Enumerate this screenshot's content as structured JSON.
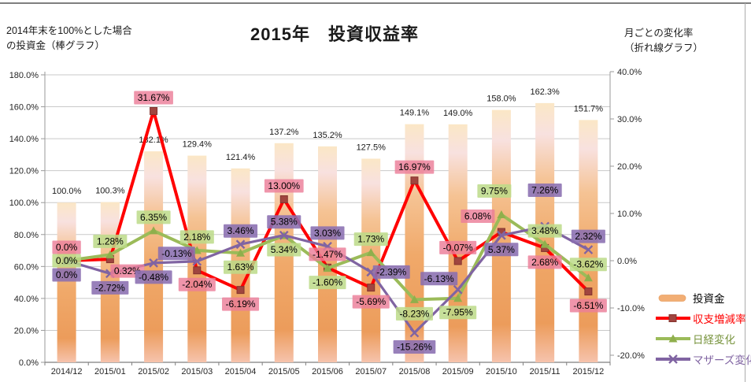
{
  "header": {
    "left_note": "2014年末を100%とした場合\nの投資金（棒グラフ）",
    "title": "2015年　投資収益率",
    "right_note": "月ごとの変化率\n（折れ線グラフ）"
  },
  "chart_data": {
    "type": "combo-bar-line",
    "categories": [
      "2014/12",
      "2015/01",
      "2015/02",
      "2015/03",
      "2015/04",
      "2015/05",
      "2015/06",
      "2015/07",
      "2015/08",
      "2015/09",
      "2015/10",
      "2015/11",
      "2015/12"
    ],
    "bar_series": {
      "name": "投資金",
      "axis": "left",
      "values": [
        100.0,
        100.3,
        132.1,
        129.4,
        121.4,
        137.2,
        135.2,
        127.5,
        149.1,
        149.0,
        158.0,
        162.3,
        151.7
      ],
      "labels": [
        "100.0%",
        "100.3%",
        "132.1%",
        "129.4%",
        "121.4%",
        "137.2%",
        "135.2%",
        "127.5%",
        "149.1%",
        "149.0%",
        "158.0%",
        "162.3%",
        "151.7%"
      ],
      "color": "#F2AE74"
    },
    "line_series": [
      {
        "key": "shushi",
        "name": "収支増減率",
        "axis": "right",
        "color": "#FF0000",
        "marker": "square",
        "marker_color": "#A0453F",
        "label_bg": "rgba(236,126,152,0.82)",
        "values": [
          0.0,
          0.32,
          31.67,
          -2.04,
          -6.19,
          13.0,
          -1.47,
          -5.69,
          16.97,
          -0.07,
          6.08,
          2.68,
          -6.51
        ],
        "labels": [
          "0.0%",
          "0.32%",
          "31.67%",
          "-2.04%",
          "-6.19%",
          "13.00%",
          "-1.47%",
          "-5.69%",
          "16.97%",
          "-0.07%",
          "6.08%",
          "2.68%",
          "-6.51%"
        ],
        "sides": [
          "a",
          "b",
          "a",
          "b",
          "b",
          "a",
          "a",
          "b",
          "a",
          "a",
          "a",
          "b",
          "b"
        ],
        "overrides": {
          "1": [
            22,
            15
          ],
          "10": [
            -30,
            -20
          ]
        }
      },
      {
        "key": "nikkei",
        "name": "日経変化",
        "axis": "right",
        "color": "#9BBB59",
        "marker": "triangle",
        "marker_color": "#8FAF4C",
        "label_bg": "rgba(188,218,136,0.85)",
        "values": [
          0.0,
          1.28,
          6.35,
          2.18,
          1.63,
          5.34,
          -1.6,
          1.73,
          -8.23,
          -7.95,
          9.75,
          3.48,
          -3.62
        ],
        "labels": [
          "0.0%",
          "1.28%",
          "6.35%",
          "2.18%",
          "1.63%",
          "5.34%",
          "-1.60%",
          "1.73%",
          "-8.23%",
          "-7.95%",
          "9.75%",
          "3.48%",
          "-3.62%"
        ],
        "sides": [
          "c",
          "a",
          "a",
          "a",
          "b",
          "b",
          "b",
          "a",
          "b",
          "b",
          "a",
          "a",
          "a"
        ],
        "overrides": {
          "10": [
            -9,
            -30
          ]
        }
      },
      {
        "key": "mothers",
        "name": "マザーズ変化",
        "axis": "right",
        "color": "#8064A2",
        "marker": "x",
        "marker_color": "#8064A2",
        "label_bg": "rgba(138,110,176,0.88)",
        "values": [
          0.0,
          -2.72,
          -0.48,
          -0.13,
          3.46,
          5.38,
          3.03,
          -2.39,
          -15.26,
          -6.13,
          5.37,
          7.26,
          2.32
        ],
        "labels": [
          "0.0%",
          "-2.72%",
          "-0.48%",
          "-0.13%",
          "3.46%",
          "5.38%",
          "3.03%",
          "-2.39%",
          "-15.26%",
          "-6.13%",
          "5.37%",
          "7.26%",
          "2.32%"
        ],
        "sides": [
          "b",
          "b",
          "b",
          "a",
          "a",
          "a",
          "a",
          "b",
          "b",
          "a",
          "b",
          "a",
          "a"
        ],
        "overrides": {
          "3": [
            -26,
            -10
          ],
          "7": [
            26,
            0
          ],
          "9": [
            -24,
            -14
          ],
          "11": [
            0,
            -46
          ]
        }
      }
    ],
    "left_axis": {
      "min": 0,
      "max": 180,
      "step": 20,
      "labels": [
        "0.0%",
        "20.0%",
        "40.0%",
        "60.0%",
        "80.0%",
        "100.0%",
        "120.0%",
        "140.0%",
        "160.0%",
        "180.0%"
      ]
    },
    "right_axis": {
      "min": -20,
      "max": 40,
      "step": 10,
      "labels": [
        "-20.0%",
        "-10.0%",
        "0.0%",
        "10.0%",
        "20.0%",
        "30.0%",
        "40.0%"
      ]
    },
    "grid": true,
    "legend_position": "right-bottom"
  },
  "legend": {
    "items": [
      {
        "key": "toushikin",
        "label": "投資金",
        "type": "bar",
        "color": "#F2AE74",
        "text_color": "#000000"
      },
      {
        "key": "shushi",
        "label": "収支増減率",
        "type": "line-square",
        "color": "#FF0000",
        "text_color": "#FF0000"
      },
      {
        "key": "nikkei",
        "label": "日経変化",
        "type": "line-triangle",
        "color": "#9BBB59",
        "text_color": "#77933C"
      },
      {
        "key": "mothers",
        "label": "マザーズ変化",
        "type": "line-x",
        "color": "#8064A2",
        "text_color": "#8064A2"
      }
    ]
  }
}
